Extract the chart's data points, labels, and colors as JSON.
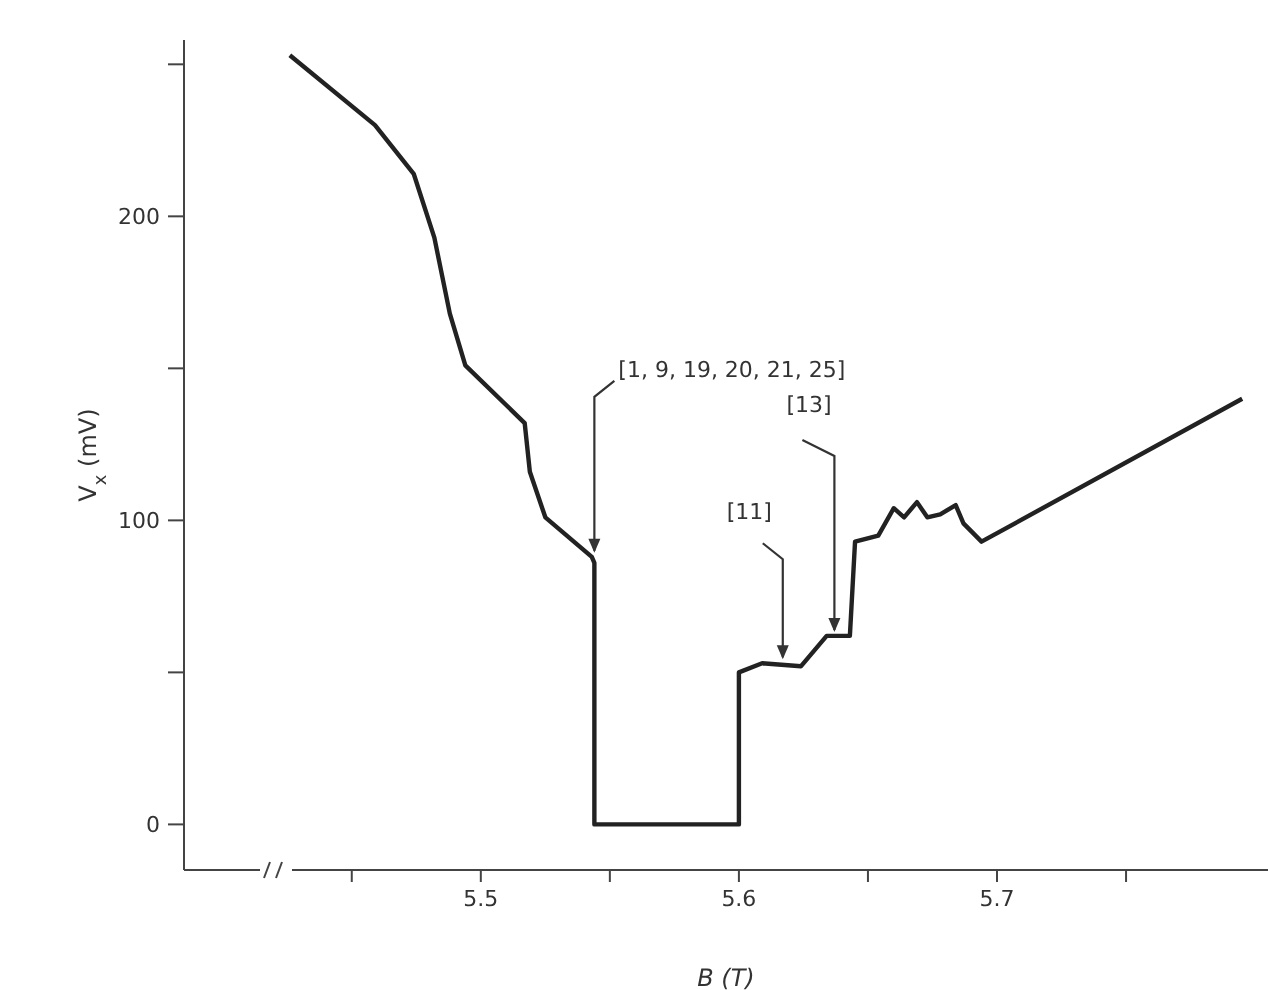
{
  "chart_data": {
    "type": "line",
    "xlabel": "B (T)",
    "ylabel": "V$_{x}$ (mV)",
    "x": [
      5.426,
      5.459,
      5.474,
      5.482,
      5.488,
      5.494,
      5.517,
      5.519,
      5.525,
      5.543,
      5.544,
      5.544,
      5.6,
      5.6,
      5.609,
      5.624,
      5.629,
      5.634,
      5.643,
      5.645,
      5.654,
      5.66,
      5.664,
      5.669,
      5.673,
      5.678,
      5.684,
      5.687,
      5.694,
      5.795
    ],
    "series": [
      {
        "color": "#222222",
        "values": [
          253,
          230,
          214,
          193,
          168,
          151,
          132,
          116,
          101,
          88,
          86,
          0,
          0,
          50,
          53,
          52,
          57,
          62,
          62,
          93,
          95,
          104,
          101,
          106,
          101,
          102,
          105,
          99,
          93,
          140
        ]
      }
    ],
    "xlim": [
      5.385,
      5.805
    ],
    "xticks": [
      {
        "value": 5.45,
        "label": null
      },
      5.5,
      {
        "value": 5.55,
        "label": null
      },
      5.6,
      {
        "value": 5.65,
        "label": null
      },
      5.7,
      {
        "value": 5.75,
        "label": null
      }
    ],
    "ylim": [
      -15,
      258
    ],
    "yticks": [
      0,
      {
        "value": 50,
        "label": null
      },
      100,
      {
        "value": 150,
        "label": null
      },
      200,
      {
        "value": 250,
        "label": null
      }
    ],
    "grid": false,
    "legend": false,
    "marker": "none",
    "line_style": "solid",
    "annotations": [
      {
        "text": "[1, 9, 19, 20, 21, 25]",
        "x": 5.544,
        "y": 88
      },
      {
        "text": "[11]",
        "x": 5.617,
        "y": 53
      },
      {
        "text": "[13]",
        "x": 5.637,
        "y": 62
      }
    ]
  }
}
